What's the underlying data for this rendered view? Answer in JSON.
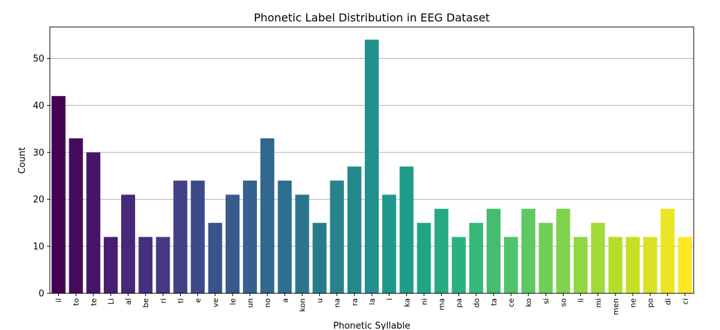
{
  "chart_data": {
    "type": "bar",
    "title": "Phonetic Label Distribution in EEG Dataset",
    "xlabel": "Phonetic Syllable",
    "ylabel": "Count",
    "categories": [
      "il",
      "to",
      "te",
      "Li",
      "al",
      "be",
      "ri",
      "ti",
      "e",
      "ve",
      "le",
      "un",
      "no",
      "a",
      "kon",
      "u",
      "na",
      "ra",
      "la",
      "i",
      "ka",
      "ni",
      "ma",
      "pa",
      "do",
      "ta",
      "ce",
      "ko",
      "si",
      "so",
      "li",
      "mi",
      "men",
      "ne",
      "po",
      "di",
      "ci"
    ],
    "values": [
      42,
      33,
      30,
      12,
      21,
      12,
      12,
      24,
      24,
      15,
      21,
      24,
      33,
      24,
      21,
      15,
      24,
      27,
      54,
      21,
      27,
      15,
      18,
      12,
      15,
      18,
      12,
      18,
      15,
      18,
      12,
      15,
      12,
      12,
      12,
      18,
      12
    ],
    "ylim": [
      0,
      56.7
    ],
    "yticks": [
      0,
      10,
      20,
      30,
      40,
      50
    ],
    "grid": "y",
    "colormap": "viridis",
    "colors": [
      "#440154",
      "#482173",
      "#433e85",
      "#38588c",
      "#2d708e",
      "#25858e",
      "#1e9b8a",
      "#2ab07f",
      "#52c569",
      "#86d549",
      "#c2df23",
      "#fde725"
    ]
  }
}
